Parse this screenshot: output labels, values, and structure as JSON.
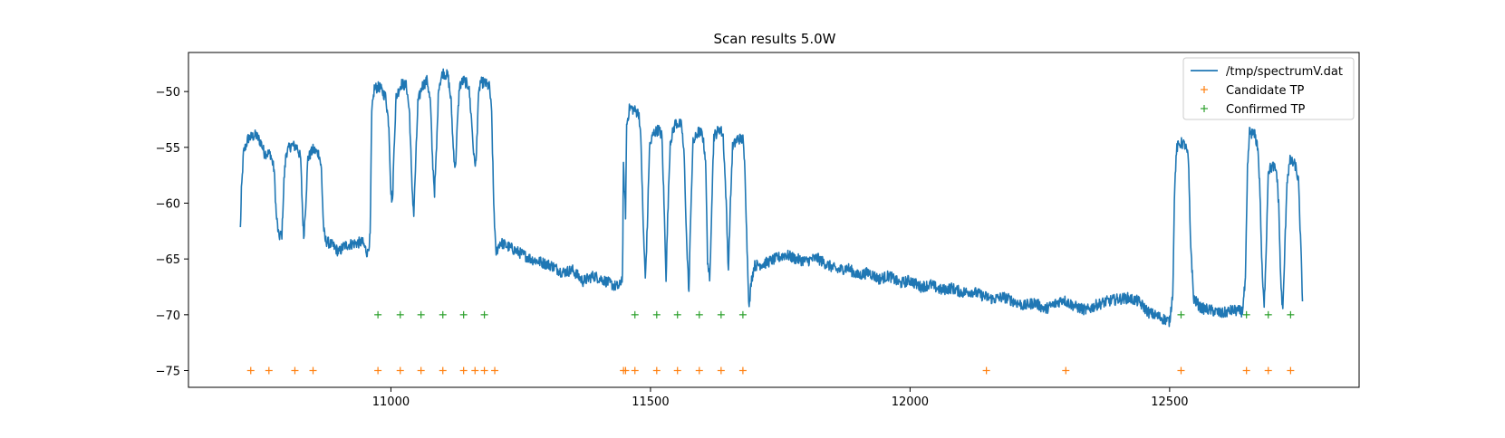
{
  "chart_data": {
    "type": "line",
    "title": "Scan results 5.0W",
    "xlabel": "",
    "ylabel": "",
    "xlim": [
      10610,
      12865
    ],
    "ylim": [
      -76.5,
      -46.5
    ],
    "xticks": [
      11000,
      11500,
      12000,
      12500
    ],
    "yticks": [
      -75,
      -70,
      -65,
      -60,
      -55,
      -50
    ],
    "grid": false,
    "legend_position": "top-right",
    "colors": {
      "spectrum": "#1f77b4",
      "candidate": "#ff7f0e",
      "confirmed": "#2ca02c"
    },
    "series": [
      {
        "name": "/tmp/spectrumV.dat",
        "type": "line",
        "points": [
          [
            10710,
            -62.3
          ],
          [
            10712,
            -59
          ],
          [
            10716,
            -55.5
          ],
          [
            10725,
            -54.2
          ],
          [
            10740,
            -53.9
          ],
          [
            10750,
            -54.6
          ],
          [
            10756,
            -55.5
          ],
          [
            10768,
            -55.6
          ],
          [
            10775,
            -57
          ],
          [
            10779,
            -61
          ],
          [
            10784,
            -63
          ],
          [
            10790,
            -62.8
          ],
          [
            10794,
            -58
          ],
          [
            10798,
            -55.5
          ],
          [
            10808,
            -54.8
          ],
          [
            10820,
            -55
          ],
          [
            10826,
            -56
          ],
          [
            10830,
            -61
          ],
          [
            10832,
            -63
          ],
          [
            10836,
            -60
          ],
          [
            10840,
            -56
          ],
          [
            10850,
            -55.2
          ],
          [
            10862,
            -55.6
          ],
          [
            10866,
            -57
          ],
          [
            10870,
            -62
          ],
          [
            10873,
            -63.3
          ],
          [
            10890,
            -63.9
          ],
          [
            10900,
            -64.4
          ],
          [
            10910,
            -63.8
          ],
          [
            10930,
            -63.6
          ],
          [
            10945,
            -63.5
          ],
          [
            10955,
            -64.5
          ],
          [
            10960,
            -63
          ],
          [
            10963,
            -52
          ],
          [
            10968,
            -49.7
          ],
          [
            10978,
            -49.6
          ],
          [
            10990,
            -50.5
          ],
          [
            10996,
            -53
          ],
          [
            11000,
            -59
          ],
          [
            11003,
            -60
          ],
          [
            11006,
            -55
          ],
          [
            11010,
            -50.5
          ],
          [
            11020,
            -49.3
          ],
          [
            11030,
            -49.5
          ],
          [
            11036,
            -52
          ],
          [
            11040,
            -58
          ],
          [
            11044,
            -61
          ],
          [
            11048,
            -56
          ],
          [
            11052,
            -51
          ],
          [
            11060,
            -49.5
          ],
          [
            11070,
            -49
          ],
          [
            11076,
            -51
          ],
          [
            11080,
            -56
          ],
          [
            11084,
            -59
          ],
          [
            11088,
            -55
          ],
          [
            11092,
            -49.5
          ],
          [
            11100,
            -48.3
          ],
          [
            11110,
            -48.6
          ],
          [
            11116,
            -51
          ],
          [
            11120,
            -55
          ],
          [
            11124,
            -57
          ],
          [
            11128,
            -53
          ],
          [
            11132,
            -49.5
          ],
          [
            11140,
            -49
          ],
          [
            11150,
            -49.5
          ],
          [
            11156,
            -53
          ],
          [
            11160,
            -56
          ],
          [
            11164,
            -56.5
          ],
          [
            11168,
            -51
          ],
          [
            11172,
            -49.2
          ],
          [
            11180,
            -49.2
          ],
          [
            11190,
            -49.6
          ],
          [
            11194,
            -52
          ],
          [
            11198,
            -60
          ],
          [
            11202,
            -64.5
          ],
          [
            11210,
            -63.5
          ],
          [
            11230,
            -64
          ],
          [
            11250,
            -64.5
          ],
          [
            11270,
            -65
          ],
          [
            11290,
            -65.3
          ],
          [
            11310,
            -65.6
          ],
          [
            11330,
            -66.2
          ],
          [
            11350,
            -66
          ],
          [
            11370,
            -67
          ],
          [
            11390,
            -66.5
          ],
          [
            11410,
            -66.9
          ],
          [
            11430,
            -67.4
          ],
          [
            11440,
            -67.5
          ],
          [
            11446,
            -66.5
          ],
          [
            11448,
            -56.8
          ],
          [
            11452,
            -61
          ],
          [
            11454,
            -53
          ],
          [
            11460,
            -51.4
          ],
          [
            11470,
            -51.7
          ],
          [
            11478,
            -52
          ],
          [
            11482,
            -55
          ],
          [
            11486,
            -62
          ],
          [
            11490,
            -66.8
          ],
          [
            11494,
            -62
          ],
          [
            11498,
            -55
          ],
          [
            11506,
            -53.7
          ],
          [
            11516,
            -53.4
          ],
          [
            11522,
            -54
          ],
          [
            11526,
            -60
          ],
          [
            11530,
            -66.6
          ],
          [
            11534,
            -60
          ],
          [
            11538,
            -54.5
          ],
          [
            11548,
            -52.8
          ],
          [
            11560,
            -53
          ],
          [
            11565,
            -56
          ],
          [
            11570,
            -64
          ],
          [
            11574,
            -68
          ],
          [
            11578,
            -60
          ],
          [
            11582,
            -54.6
          ],
          [
            11592,
            -53.6
          ],
          [
            11600,
            -53.8
          ],
          [
            11606,
            -56
          ],
          [
            11610,
            -65
          ],
          [
            11614,
            -67.2
          ],
          [
            11618,
            -60
          ],
          [
            11622,
            -54
          ],
          [
            11634,
            -53.3
          ],
          [
            11640,
            -54
          ],
          [
            11645,
            -59
          ],
          [
            11650,
            -66
          ],
          [
            11654,
            -60
          ],
          [
            11658,
            -55
          ],
          [
            11668,
            -54.2
          ],
          [
            11678,
            -54.3
          ],
          [
            11682,
            -57
          ],
          [
            11686,
            -64
          ],
          [
            11690,
            -69.5
          ],
          [
            11694,
            -67
          ],
          [
            11700,
            -65.6
          ],
          [
            11720,
            -65.4
          ],
          [
            11740,
            -65
          ],
          [
            11760,
            -64.6
          ],
          [
            11780,
            -65
          ],
          [
            11800,
            -65.2
          ],
          [
            11820,
            -64.9
          ],
          [
            11840,
            -65.5
          ],
          [
            11860,
            -66
          ],
          [
            11880,
            -65.8
          ],
          [
            11900,
            -66.5
          ],
          [
            11920,
            -66.2
          ],
          [
            11940,
            -66.8
          ],
          [
            11960,
            -66.5
          ],
          [
            11980,
            -67.2
          ],
          [
            12000,
            -66.9
          ],
          [
            12020,
            -67.5
          ],
          [
            12040,
            -67.3
          ],
          [
            12060,
            -67.8
          ],
          [
            12080,
            -67.6
          ],
          [
            12100,
            -68
          ],
          [
            12120,
            -67.9
          ],
          [
            12140,
            -68.3
          ],
          [
            12160,
            -68.6
          ],
          [
            12180,
            -68.4
          ],
          [
            12200,
            -68.8
          ],
          [
            12220,
            -69.2
          ],
          [
            12240,
            -68.9
          ],
          [
            12260,
            -69.5
          ],
          [
            12280,
            -69
          ],
          [
            12295,
            -68.6
          ],
          [
            12300,
            -68.8
          ],
          [
            12320,
            -69.3
          ],
          [
            12340,
            -69.6
          ],
          [
            12360,
            -69.1
          ],
          [
            12380,
            -68.8
          ],
          [
            12400,
            -68.6
          ],
          [
            12420,
            -68.5
          ],
          [
            12440,
            -68.8
          ],
          [
            12460,
            -69.8
          ],
          [
            12480,
            -70.2
          ],
          [
            12500,
            -70.6
          ],
          [
            12506,
            -68
          ],
          [
            12510,
            -58
          ],
          [
            12514,
            -55
          ],
          [
            12522,
            -54.6
          ],
          [
            12530,
            -54.8
          ],
          [
            12536,
            -56
          ],
          [
            12540,
            -63
          ],
          [
            12546,
            -68.5
          ],
          [
            12560,
            -69.4
          ],
          [
            12580,
            -69.6
          ],
          [
            12600,
            -69.9
          ],
          [
            12620,
            -69.6
          ],
          [
            12640,
            -69.7
          ],
          [
            12646,
            -67
          ],
          [
            12650,
            -57
          ],
          [
            12654,
            -53.6
          ],
          [
            12664,
            -53.9
          ],
          [
            12670,
            -55
          ],
          [
            12674,
            -59
          ],
          [
            12678,
            -66
          ],
          [
            12682,
            -69.4
          ],
          [
            12686,
            -64
          ],
          [
            12690,
            -57
          ],
          [
            12700,
            -56.7
          ],
          [
            12706,
            -57.2
          ],
          [
            12710,
            -60
          ],
          [
            12714,
            -67
          ],
          [
            12718,
            -69.8
          ],
          [
            12722,
            -64
          ],
          [
            12726,
            -58
          ],
          [
            12732,
            -56.2
          ],
          [
            12742,
            -56.6
          ],
          [
            12748,
            -58
          ],
          [
            12752,
            -63
          ],
          [
            12756,
            -68.8
          ]
        ]
      },
      {
        "name": "Candidate TP",
        "type": "scatter",
        "marker": "+",
        "x": [
          10730,
          10765,
          10815,
          10850,
          10975,
          11018,
          11058,
          11100,
          11140,
          11162,
          11180,
          11200,
          11448,
          11452,
          11470,
          11512,
          11552,
          11594,
          11636,
          11678,
          12147,
          12300,
          12522,
          12648,
          12690,
          12733
        ],
        "y": [
          -75,
          -75,
          -75,
          -75,
          -75,
          -75,
          -75,
          -75,
          -75,
          -75,
          -75,
          -75,
          -75,
          -75,
          -75,
          -75,
          -75,
          -75,
          -75,
          -75,
          -75,
          -75,
          -75,
          -75,
          -75,
          -75
        ]
      },
      {
        "name": "Confirmed TP",
        "type": "scatter",
        "marker": "+",
        "x": [
          10975,
          11018,
          11058,
          11100,
          11140,
          11180,
          11470,
          11512,
          11552,
          11594,
          11636,
          11678,
          12522,
          12648,
          12690,
          12733
        ],
        "y": [
          -70,
          -70,
          -70,
          -70,
          -70,
          -70,
          -70,
          -70,
          -70,
          -70,
          -70,
          -70,
          -70,
          -70,
          -70,
          -70
        ]
      }
    ]
  }
}
